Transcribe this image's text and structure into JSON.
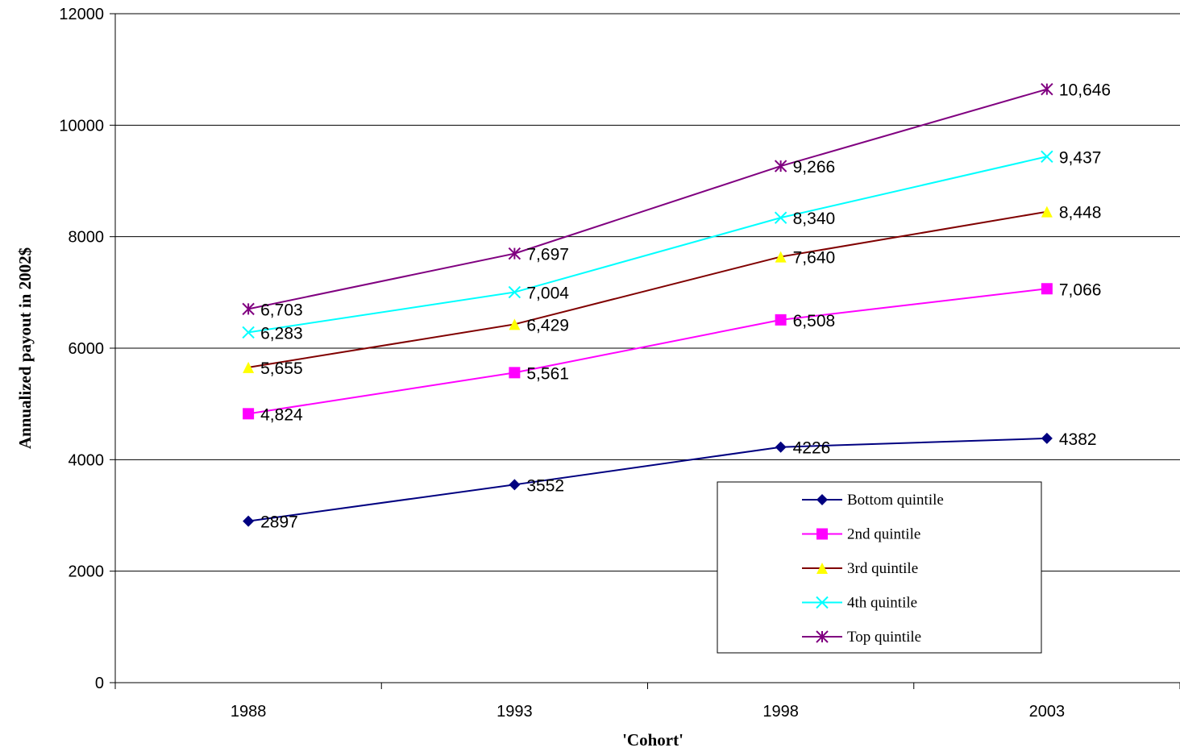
{
  "chart_data": {
    "type": "line",
    "title": "",
    "xlabel": "'Cohort'",
    "ylabel": "Annualized payout in 2002$",
    "categories": [
      "1988",
      "1993",
      "1998",
      "2003"
    ],
    "ylim": [
      0,
      12000
    ],
    "yticks": [
      0,
      2000,
      4000,
      6000,
      8000,
      10000,
      12000
    ],
    "grid": "horizontal",
    "legend_position": "lower-right",
    "series": [
      {
        "name": "Bottom quintile",
        "color": "#000080",
        "marker": "diamond",
        "marker_color": "#000080",
        "values": [
          2897,
          3552,
          4226,
          4382
        ],
        "labels": [
          "2897",
          "3552",
          "4226",
          "4382"
        ]
      },
      {
        "name": "2nd quintile",
        "color": "#FF00FF",
        "marker": "square",
        "marker_color": "#FF00FF",
        "values": [
          4824,
          5561,
          6508,
          7066
        ],
        "labels": [
          "4,824",
          "5,561",
          "6,508",
          "7,066"
        ]
      },
      {
        "name": "3rd quintile",
        "color": "#800000",
        "marker": "triangle",
        "marker_color": "#FFFF00",
        "values": [
          5655,
          6429,
          7640,
          8448
        ],
        "labels": [
          "5,655",
          "6,429",
          "7,640",
          "8,448"
        ]
      },
      {
        "name": "4th quintile",
        "color": "#00FFFF",
        "marker": "x",
        "marker_color": "#00FFFF",
        "values": [
          6283,
          7004,
          8340,
          9437
        ],
        "labels": [
          "6,283",
          "7,004",
          "8,340",
          "9,437"
        ]
      },
      {
        "name": "Top quintile",
        "color": "#800080",
        "marker": "asterisk",
        "marker_color": "#800080",
        "values": [
          6703,
          7697,
          9266,
          10646
        ],
        "labels": [
          "6,703",
          "7,697",
          "9,266",
          "10,646"
        ]
      }
    ]
  }
}
